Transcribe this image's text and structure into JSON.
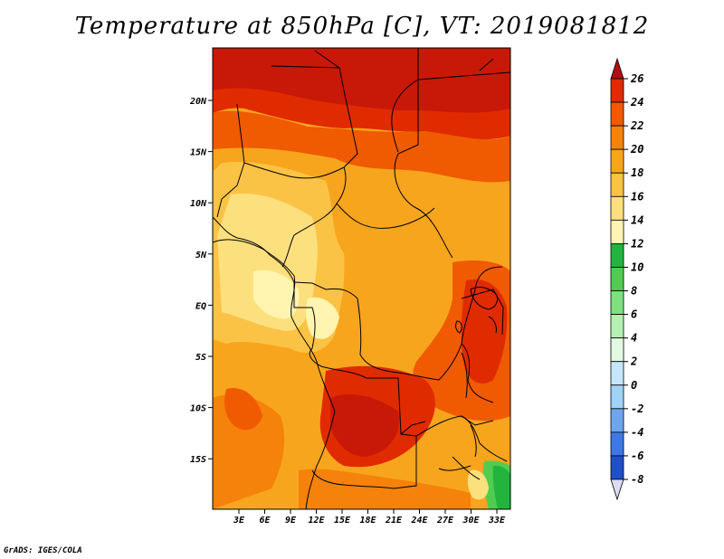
{
  "title": "Temperature at 850hPa [C], VT: 2019081812",
  "credit": "GrADS: IGES/COLA",
  "map": {
    "lon_labels": [
      "3E",
      "6E",
      "9E",
      "12E",
      "15E",
      "18E",
      "21E",
      "24E",
      "27E",
      "30E",
      "33E"
    ],
    "lat_labels": [
      "20N",
      "15N",
      "10N",
      "5N",
      "EQ",
      "5S",
      "10S",
      "15S"
    ]
  },
  "colorbar": {
    "labels": [
      "26",
      "24",
      "22",
      "20",
      "18",
      "16",
      "14",
      "12",
      "10",
      "8",
      "6",
      "4",
      "2",
      "0",
      "-2",
      "-4",
      "-6",
      "-8"
    ],
    "colors": [
      "#b01010",
      "#e02a00",
      "#f05a00",
      "#f5820a",
      "#f8a51e",
      "#fbc346",
      "#fde07e",
      "#fff5b0",
      "#22b43c",
      "#50cd50",
      "#7ee17e",
      "#b4f0b4",
      "#e1fae1",
      "#c8e6fa",
      "#a0d2f5",
      "#6ea5f0",
      "#3c78e6",
      "#1e50c8",
      "#1432a0",
      "#0a0a6e",
      "#dcdcf5"
    ],
    "top_arrow_color": "#b01010",
    "bottom_arrow_color": "#dcdcf5"
  }
}
